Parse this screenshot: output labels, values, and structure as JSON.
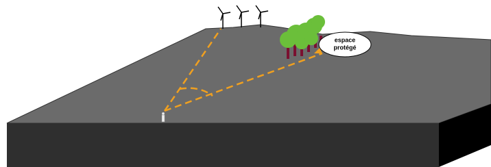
{
  "nodes": [
    {
      "label_lines": [
        "espace",
        "protégé"
      ]
    }
  ]
}
